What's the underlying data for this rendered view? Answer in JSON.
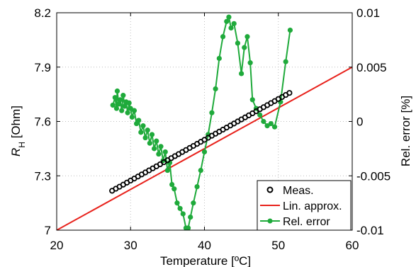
{
  "chart_data": {
    "type": "line",
    "xlabel": "Temperature [ºC]",
    "ylabel_left_main": "R",
    "ylabel_left_sub": "H",
    "ylabel_left_unit": " [Ohm]",
    "ylabel_right": "Rel. error [%]",
    "xlim": [
      20,
      60
    ],
    "ylim_left": [
      7.0,
      8.2
    ],
    "ylim_right": [
      -0.01,
      0.01
    ],
    "grid": true,
    "legend_position": "bottom-right",
    "x_ticks": [
      "20",
      "30",
      "40",
      "50",
      "60"
    ],
    "x_tick_values": [
      20,
      30,
      40,
      50,
      60
    ],
    "y_left_ticks": [
      "7",
      "7.3",
      "7.6",
      "7.9",
      "8.2"
    ],
    "y_left_tick_values": [
      7.0,
      7.3,
      7.6,
      7.9,
      8.2
    ],
    "y_right_ticks": [
      "-0.01",
      "-0.005",
      "0",
      "0.005",
      "0.01"
    ],
    "y_right_tick_values": [
      -0.01,
      -0.005,
      0,
      0.005,
      0.01
    ],
    "colors": {
      "measured": "#000000",
      "approx": "#e8221c",
      "error": "#1faa3b"
    },
    "series": [
      {
        "name": "Meas.",
        "axis": "left",
        "x": [
          27.5,
          28.0,
          28.5,
          29.0,
          29.5,
          30.0,
          30.5,
          31.0,
          31.5,
          32.0,
          32.5,
          33.0,
          33.5,
          34.0,
          34.5,
          35.0,
          35.5,
          36.0,
          36.5,
          37.0,
          37.5,
          38.0,
          38.5,
          39.0,
          39.5,
          40.0,
          40.5,
          41.0,
          41.5,
          42.0,
          42.5,
          43.0,
          43.5,
          44.0,
          44.5,
          45.0,
          45.5,
          46.0,
          46.5,
          47.0,
          47.5,
          48.0,
          48.5,
          49.0,
          49.5,
          50.0,
          50.5,
          51.0,
          51.5
        ],
        "y": [
          7.2175,
          7.2288,
          7.24,
          7.2512,
          7.2625,
          7.2738,
          7.285,
          7.2962,
          7.3075,
          7.3187,
          7.33,
          7.3412,
          7.3525,
          7.3637,
          7.375,
          7.3863,
          7.3975,
          7.4088,
          7.42,
          7.4313,
          7.4425,
          7.4538,
          7.465,
          7.4763,
          7.4875,
          7.4988,
          7.51,
          7.5213,
          7.5325,
          7.5438,
          7.555,
          7.5663,
          7.5775,
          7.5888,
          7.6,
          7.6113,
          7.6225,
          7.6338,
          7.645,
          7.6563,
          7.6675,
          7.6788,
          7.69,
          7.7013,
          7.7125,
          7.7238,
          7.735,
          7.7463,
          7.7575
        ]
      },
      {
        "name": "Lin. approx.",
        "axis": "left",
        "x": [
          20,
          60
        ],
        "y": [
          7.0,
          7.9
        ]
      },
      {
        "name": "Rel. error",
        "axis": "right",
        "x": [
          27.6,
          27.9,
          28.1,
          28.2,
          28.4,
          28.6,
          28.8,
          29.0,
          29.2,
          29.4,
          29.6,
          29.8,
          30.0,
          30.2,
          30.5,
          30.8,
          31.1,
          31.4,
          31.7,
          32.0,
          32.3,
          32.6,
          32.9,
          33.2,
          33.5,
          33.8,
          34.1,
          34.4,
          34.7,
          35.0,
          35.3,
          35.6,
          35.9,
          36.3,
          36.7,
          37.1,
          37.5,
          37.8,
          38.1,
          38.5,
          39.0,
          39.5,
          40.0,
          40.5,
          41.0,
          41.5,
          42.0,
          42.5,
          43.0,
          43.3,
          43.6,
          44.0,
          44.5,
          45.0,
          45.4,
          45.8,
          46.2,
          46.5,
          47.0,
          47.5,
          48.0,
          48.5,
          49.0,
          49.5,
          50.3,
          51.0,
          51.6
        ],
        "y": [
          0.0015,
          0.0022,
          0.0012,
          0.0028,
          0.0016,
          0.002,
          0.001,
          0.0024,
          0.0014,
          0.0018,
          0.0008,
          0.0017,
          0.0012,
          0.0004,
          0.001,
          -0.0002,
          0.0001,
          -0.001,
          -0.0004,
          -0.0015,
          -0.0008,
          -0.002,
          -0.0012,
          -0.0025,
          -0.0018,
          -0.003,
          -0.0023,
          -0.0036,
          -0.0028,
          -0.0045,
          -0.0038,
          -0.0058,
          -0.0062,
          -0.0075,
          -0.008,
          -0.0085,
          -0.0098,
          -0.0098,
          -0.0088,
          -0.0075,
          -0.006,
          -0.0045,
          -0.0028,
          -0.0012,
          0.0008,
          0.003,
          0.0058,
          0.0078,
          0.0092,
          0.0096,
          0.0086,
          0.009,
          0.0072,
          0.0044,
          0.0068,
          0.0078,
          0.0054,
          0.002,
          0.0012,
          0.0006,
          0.0,
          -0.0004,
          -0.0002,
          -0.0005,
          0.0018,
          0.0055,
          0.0084
        ]
      }
    ]
  }
}
